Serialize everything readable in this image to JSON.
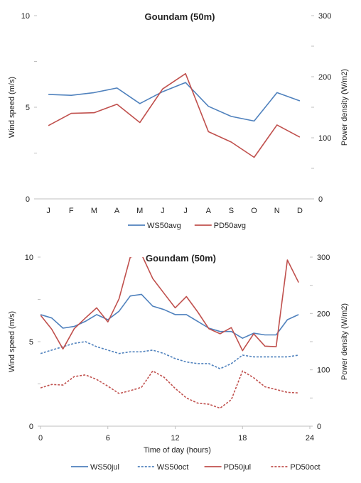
{
  "chart_data": [
    {
      "type": "line",
      "title": "Goundam (50m)",
      "xlabel": "",
      "ylabel": "Wind speed (m/s)",
      "y2label": "Power density (W/m2)",
      "categories": [
        "J",
        "F",
        "M",
        "A",
        "M",
        "J",
        "J",
        "A",
        "S",
        "O",
        "N",
        "D"
      ],
      "ylim": [
        0,
        10
      ],
      "y2lim": [
        0,
        300
      ],
      "yticks": [
        "0",
        "5",
        "10"
      ],
      "y2ticks": [
        "0",
        "100",
        "200",
        "300"
      ],
      "series": [
        {
          "name": "WS50avg",
          "axis": "left",
          "color": "#4f81bd",
          "dash": "solid",
          "values": [
            5.7,
            5.65,
            5.8,
            6.05,
            5.2,
            5.85,
            6.35,
            5.05,
            4.5,
            4.25,
            5.8,
            5.35
          ]
        },
        {
          "name": "PD50avg",
          "axis": "right",
          "color": "#c0504d",
          "dash": "solid",
          "values": [
            120,
            140,
            141,
            155,
            125,
            180,
            205,
            110,
            93,
            68,
            121,
            101
          ]
        }
      ],
      "legend": "bottom"
    },
    {
      "type": "line",
      "title": "Goundam (50m)",
      "xlabel": "Time of day (hours)",
      "ylabel": "Wind speed (m/s)",
      "y2label": "Power density (W/m2)",
      "x": [
        0,
        1,
        2,
        3,
        4,
        5,
        6,
        7,
        8,
        9,
        10,
        11,
        12,
        13,
        14,
        15,
        16,
        17,
        18,
        19,
        20,
        21,
        22,
        23
      ],
      "xticks": [
        "0",
        "6",
        "12",
        "18",
        "24"
      ],
      "xlim": [
        0,
        24
      ],
      "ylim": [
        0,
        10
      ],
      "y2lim": [
        0,
        300
      ],
      "yticks": [
        "0",
        "5",
        "10"
      ],
      "y2ticks": [
        "0",
        "100",
        "200",
        "300"
      ],
      "series": [
        {
          "name": "WS50jul",
          "axis": "left",
          "color": "#4f81bd",
          "dash": "solid",
          "values": [
            6.6,
            6.4,
            5.8,
            5.9,
            6.2,
            6.6,
            6.3,
            6.8,
            7.7,
            7.8,
            7.1,
            6.9,
            6.6,
            6.6,
            6.2,
            5.8,
            5.6,
            5.6,
            5.2,
            5.5,
            5.4,
            5.4,
            6.3,
            6.6
          ]
        },
        {
          "name": "WS50oct",
          "axis": "left",
          "color": "#4f81bd",
          "dash": "dashed",
          "values": [
            4.3,
            4.5,
            4.7,
            4.9,
            5.0,
            4.7,
            4.5,
            4.3,
            4.4,
            4.4,
            4.5,
            4.3,
            4.0,
            3.8,
            3.7,
            3.7,
            3.4,
            3.7,
            4.2,
            4.1,
            4.1,
            4.1,
            4.1,
            4.2
          ]
        },
        {
          "name": "PD50jul",
          "axis": "right",
          "color": "#c0504d",
          "dash": "solid",
          "values": [
            197,
            172,
            137,
            173,
            192,
            210,
            185,
            226,
            300,
            305,
            262,
            236,
            210,
            230,
            203,
            173,
            164,
            175,
            134,
            164,
            142,
            141,
            295,
            255
          ]
        },
        {
          "name": "PD50oct",
          "axis": "right",
          "color": "#c0504d",
          "dash": "dashed",
          "values": [
            68,
            74,
            73,
            88,
            91,
            83,
            71,
            58,
            63,
            69,
            98,
            87,
            67,
            50,
            41,
            39,
            32,
            47,
            98,
            86,
            70,
            65,
            60,
            59
          ]
        }
      ],
      "legend": "bottom"
    }
  ]
}
